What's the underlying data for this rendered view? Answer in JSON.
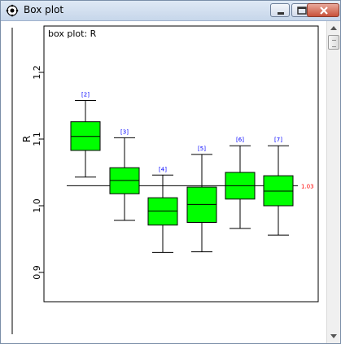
{
  "window": {
    "title": "Box plot",
    "title_bar_color": "#c6d6ea"
  },
  "chart_data": {
    "type": "box",
    "title": "box plot: R",
    "ylabel": "R",
    "ylim": [
      0.86,
      1.28
    ],
    "yticks": [
      0.9,
      1.0,
      1.1,
      1.2
    ],
    "ytick_labels": [
      "0.9",
      "1.0",
      "1.1",
      "1.2"
    ],
    "reference_line": {
      "value": 1.03,
      "label": "1.03",
      "color": "#ff0000"
    },
    "box_color": "#00ff00",
    "label_color": "#0000ff",
    "boxes": [
      {
        "label": "[2]",
        "min": 1.043,
        "q1": 1.083,
        "median": 1.104,
        "q3": 1.126,
        "max": 1.158
      },
      {
        "label": "[3]",
        "min": 0.978,
        "q1": 1.018,
        "median": 1.038,
        "q3": 1.057,
        "max": 1.102
      },
      {
        "label": "[4]",
        "min": 0.93,
        "q1": 0.971,
        "median": 0.992,
        "q3": 1.012,
        "max": 1.046
      },
      {
        "label": "[5]",
        "min": 0.931,
        "q1": 0.975,
        "median": 1.002,
        "q3": 1.028,
        "max": 1.077
      },
      {
        "label": "[6]",
        "min": 0.966,
        "q1": 1.01,
        "median": 1.03,
        "q3": 1.05,
        "max": 1.09
      },
      {
        "label": "[7]",
        "min": 0.956,
        "q1": 1.0,
        "median": 1.022,
        "q3": 1.045,
        "max": 1.09
      }
    ]
  }
}
